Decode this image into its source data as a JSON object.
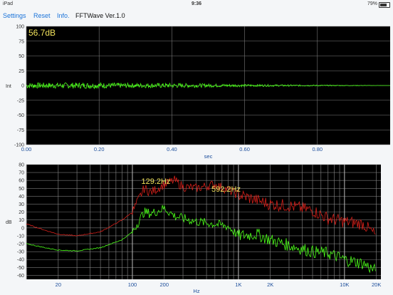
{
  "status": {
    "device": "iPad",
    "time": "9:36",
    "battery": "79%"
  },
  "toolbar": {
    "settings": "Settings",
    "reset": "Reset",
    "info": "Info.",
    "title": "FFTWave Ver.1.0"
  },
  "wave": {
    "level": "56.7dB",
    "y_axis_label": "Int",
    "x_axis_label": "sec",
    "y_ticks": [
      "100",
      "75",
      "50",
      "25",
      "0",
      "-25",
      "-50",
      "-75",
      "-100"
    ],
    "x_ticks": [
      "0.00",
      "0.20",
      "0.40",
      "0.60",
      "0.80"
    ],
    "x_values": [
      0,
      0.2,
      0.4,
      0.6,
      0.8
    ],
    "x_range": [
      0,
      1.0
    ],
    "signal_color": "#4cff1a"
  },
  "spectrum": {
    "y_axis_label": "dB",
    "x_axis_label": "Hz",
    "y_ticks": [
      "80",
      "70",
      "60",
      "50",
      "40",
      "30",
      "20",
      "10",
      "0",
      "-10",
      "-20",
      "-30",
      "-40",
      "-50",
      "-60"
    ],
    "x_ticks": [
      "20",
      "100",
      "200",
      "1K",
      "2K",
      "10K",
      "20K"
    ],
    "x_tick_values": [
      20,
      100,
      200,
      1000,
      2000,
      10000,
      20000
    ],
    "x_range": [
      10,
      22050
    ],
    "y_range": [
      -65,
      80
    ],
    "peaks": [
      "129.2Hz",
      "592.2Hz"
    ],
    "peak_freqs": [
      129.2,
      592.2
    ],
    "peak_color": "#f2e35c",
    "series_colors": {
      "red": "#d6201a",
      "green": "#4cff1a"
    }
  },
  "chart_data": [
    {
      "type": "line",
      "title": "56.7dB",
      "xlabel": "sec",
      "ylabel": "Int",
      "xlim": [
        0,
        1.0
      ],
      "ylim": [
        -100,
        100
      ],
      "grid": true,
      "series": [
        {
          "x": [
            0.0,
            0.1,
            0.2,
            0.3,
            0.4,
            0.5,
            0.6,
            0.7,
            0.8,
            0.9,
            1.0
          ],
          "values": [
            5,
            5,
            5,
            4,
            4,
            3,
            2,
            1.5,
            1,
            0.5,
            0
          ]
        }
      ]
    },
    {
      "type": "line",
      "xlabel": "Hz",
      "ylabel": "dB",
      "xlim": [
        10,
        22050
      ],
      "ylim": [
        -65,
        80
      ],
      "x_scale": "log",
      "grid": true,
      "series": [
        {
          "x": [
            10,
            15,
            20,
            30,
            50,
            80,
            100,
            129,
            150,
            200,
            250,
            300,
            400,
            592,
            800,
            1000,
            1500,
            2000,
            3000,
            5000,
            7000,
            10000,
            15000,
            20000
          ],
          "values": [
            5,
            -3,
            -8,
            -10,
            -5,
            10,
            20,
            50,
            45,
            55,
            60,
            52,
            50,
            55,
            48,
            42,
            35,
            30,
            28,
            22,
            12,
            8,
            5,
            -10
          ]
        },
        {
          "x": [
            10,
            15,
            20,
            30,
            50,
            80,
            100,
            129,
            150,
            200,
            250,
            300,
            400,
            592,
            800,
            1000,
            1500,
            2000,
            3000,
            5000,
            7000,
            10000,
            15000,
            20000
          ],
          "values": [
            -20,
            -25,
            -28,
            -29,
            -25,
            -15,
            -5,
            20,
            18,
            25,
            15,
            12,
            8,
            5,
            2,
            -10,
            -8,
            -15,
            -22,
            -30,
            -32,
            -40,
            -45,
            -55
          ]
        }
      ]
    }
  ]
}
